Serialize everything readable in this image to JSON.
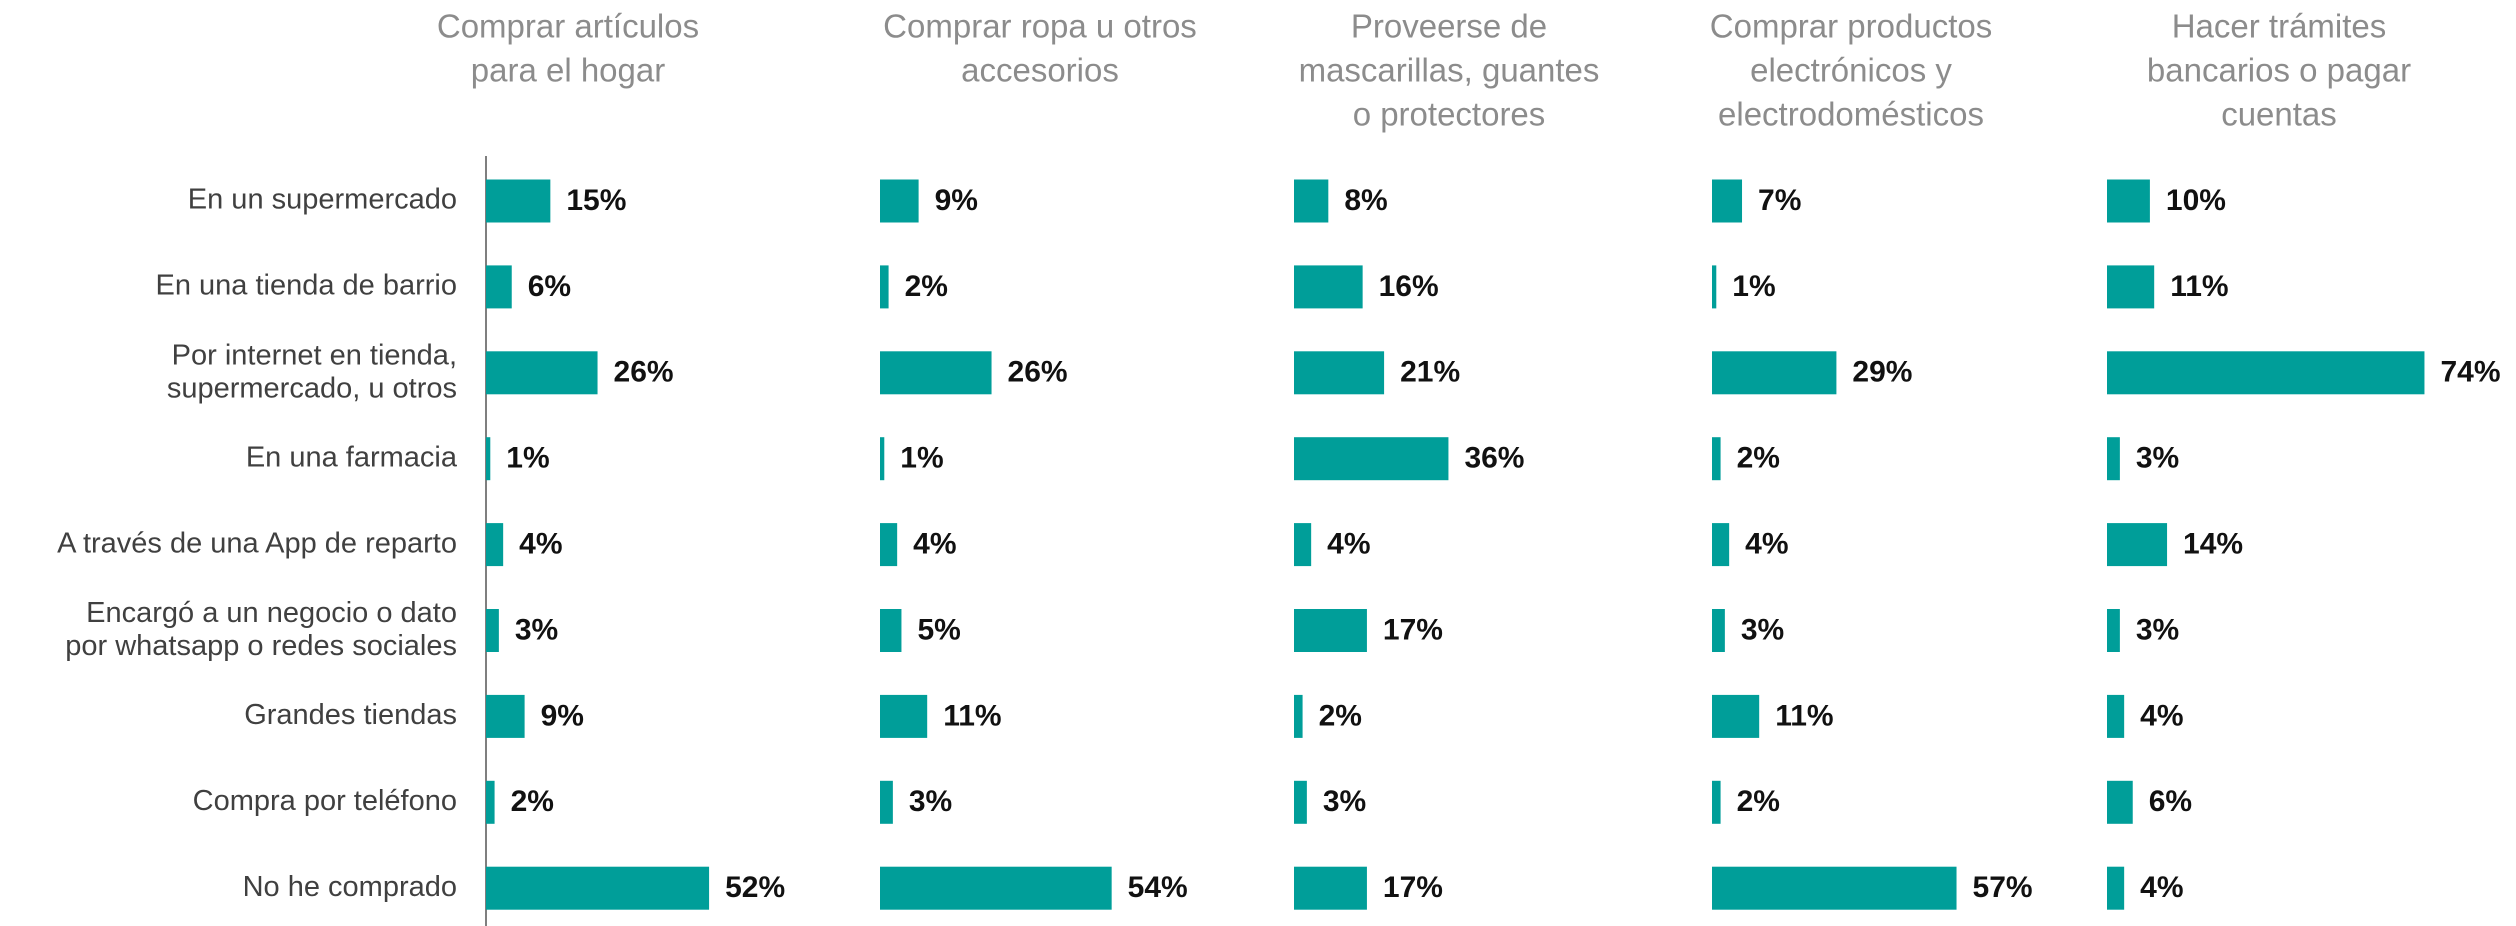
{
  "chart_data": [
    {
      "type": "bar",
      "orientation": "horizontal",
      "color": "#009e99",
      "title": [
        "Comprar artículos",
        "para el hogar"
      ],
      "categories": [
        "En un supermercado",
        "En una tienda de barrio",
        "Por internet en tienda,\nsupermercado, u otros",
        "En una farmacia",
        "A través de una App de reparto",
        "Encargó a un negocio o dato\npor whatsapp o redes sociales",
        "Grandes tiendas",
        "Compra por teléfono",
        "No he comprado"
      ],
      "values": [
        15,
        6,
        26,
        1,
        4,
        3,
        9,
        2,
        52
      ],
      "value_labels": [
        "15%",
        "6%",
        "26%",
        "1%",
        "4%",
        "3%",
        "9%",
        "2%",
        "52%"
      ]
    },
    {
      "type": "bar",
      "orientation": "horizontal",
      "color": "#009e99",
      "title": [
        "Comprar ropa u otros",
        "accesorios"
      ],
      "values": [
        9,
        2,
        26,
        1,
        4,
        5,
        11,
        3,
        54
      ],
      "value_labels": [
        "9%",
        "2%",
        "26%",
        "1%",
        "4%",
        "5%",
        "11%",
        "3%",
        "54%"
      ]
    },
    {
      "type": "bar",
      "orientation": "horizontal",
      "color": "#009e99",
      "title": [
        "Proveerse de",
        "mascarillas, guantes",
        "o protectores"
      ],
      "values": [
        8,
        16,
        21,
        36,
        4,
        17,
        2,
        3,
        17
      ],
      "value_labels": [
        "8%",
        "16%",
        "21%",
        "36%",
        "4%",
        "17%",
        "2%",
        "3%",
        "17%"
      ]
    },
    {
      "type": "bar",
      "orientation": "horizontal",
      "color": "#009e99",
      "title": [
        "Comprar productos",
        "electrónicos y",
        "electrodomésticos"
      ],
      "values": [
        7,
        1,
        29,
        2,
        4,
        3,
        11,
        2,
        57
      ],
      "value_labels": [
        "7%",
        "1%",
        "29%",
        "2%",
        "4%",
        "3%",
        "11%",
        "2%",
        "57%"
      ]
    },
    {
      "type": "bar",
      "orientation": "horizontal",
      "color": "#009e99",
      "title": [
        "Hacer trámites",
        "bancarios o pagar",
        "cuentas"
      ],
      "values": [
        10,
        11,
        74,
        3,
        14,
        3,
        4,
        6,
        4
      ],
      "value_labels": [
        "10%",
        "11%",
        "74%",
        "3%",
        "14%",
        "3%",
        "4%",
        "6%",
        "4%"
      ]
    }
  ]
}
